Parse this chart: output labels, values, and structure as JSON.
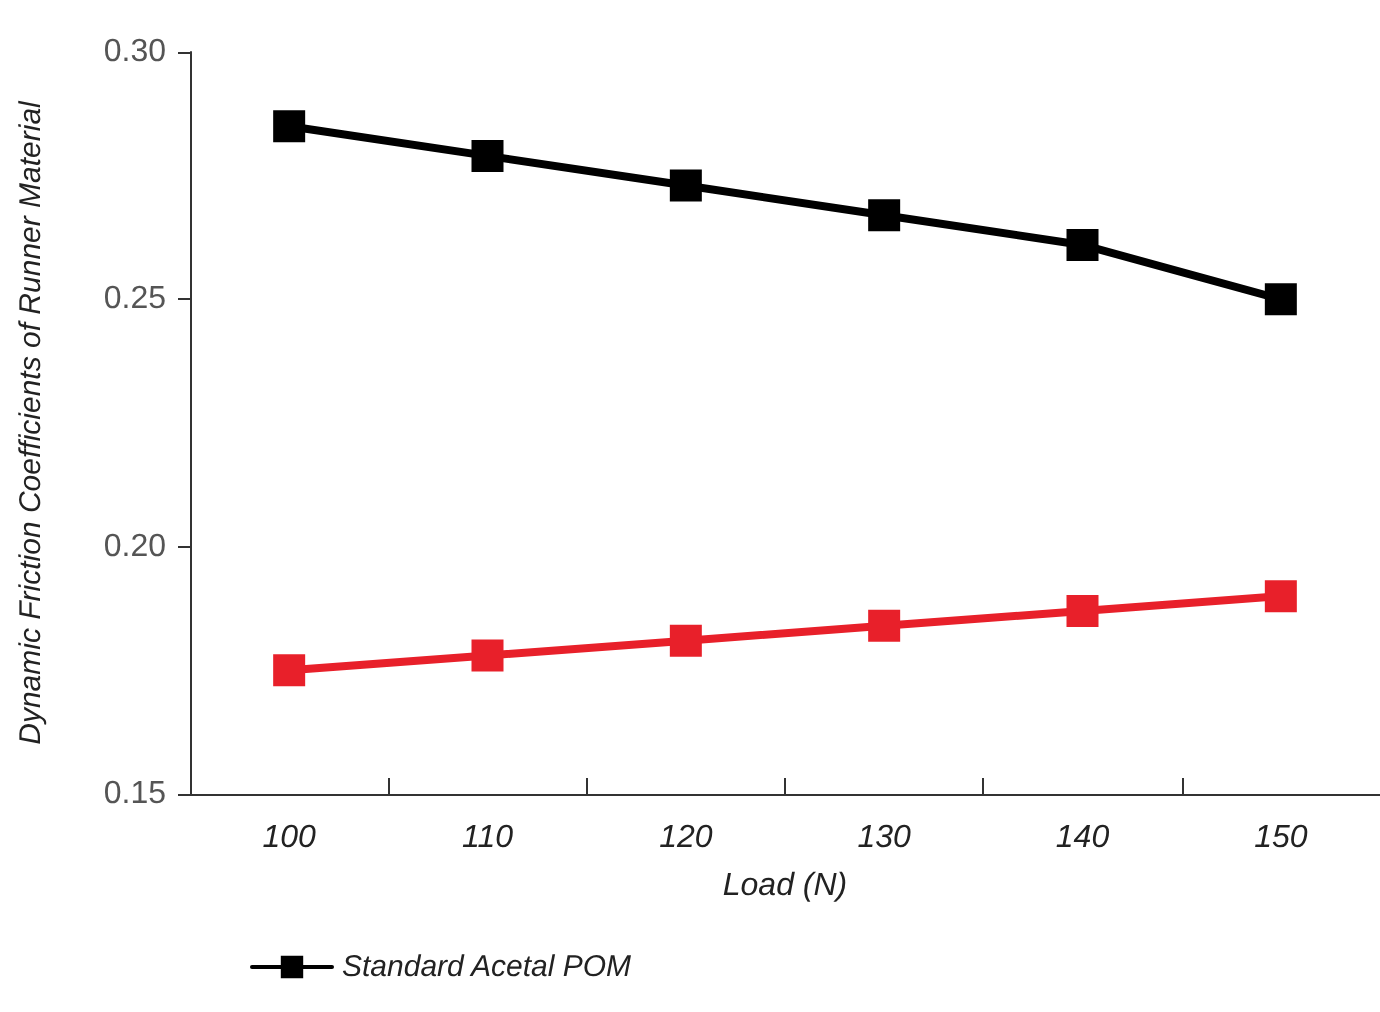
{
  "chart_data": {
    "type": "line",
    "xlabel": "Load (N)",
    "ylabel": "Dynamic Friction Coefficients of Runner Material",
    "categories": [
      "100",
      "110",
      "120",
      "130",
      "140",
      "150"
    ],
    "series": [
      {
        "name": "Standard Acetal POM",
        "color": "#000000",
        "values": [
          0.285,
          0.279,
          0.273,
          0.267,
          0.261,
          0.25
        ]
      },
      {
        "color": "#e8202a",
        "values": [
          0.175,
          0.178,
          0.181,
          0.184,
          0.187,
          0.19
        ]
      }
    ],
    "ylim": [
      0.15,
      0.3
    ],
    "yticks": [
      0.15,
      {
        "value": 0.2,
        "label": "0.20"
      },
      0.25,
      {
        "value": 0.3,
        "label": "0.30"
      }
    ],
    "grid": false,
    "legend": "bottom",
    "marker": "square",
    "line_style": "solid"
  }
}
